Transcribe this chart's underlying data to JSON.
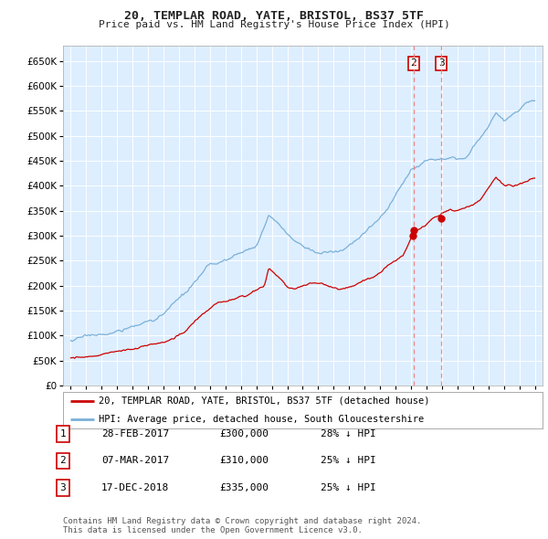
{
  "title": "20, TEMPLAR ROAD, YATE, BRISTOL, BS37 5TF",
  "subtitle": "Price paid vs. HM Land Registry's House Price Index (HPI)",
  "ylim": [
    0,
    680000
  ],
  "yticks": [
    0,
    50000,
    100000,
    150000,
    200000,
    250000,
    300000,
    350000,
    400000,
    450000,
    500000,
    550000,
    600000,
    650000
  ],
  "background_color": "#ffffff",
  "plot_bg_color": "#ddeeff",
  "grid_color": "#ffffff",
  "hpi_color": "#7ab0d8",
  "price_color": "#cc0000",
  "marker_color": "#cc0000",
  "vline_color": "#ee8888",
  "sale_dates": [
    2017.12,
    2017.17,
    2018.96
  ],
  "sale_prices": [
    300000,
    310000,
    335000
  ],
  "vline_dates": [
    2017.17,
    2018.96
  ],
  "vline_labels": [
    "2",
    "3"
  ],
  "legend_entries": [
    {
      "label": "20, TEMPLAR ROAD, YATE, BRISTOL, BS37 5TF (detached house)",
      "color": "#cc0000"
    },
    {
      "label": "HPI: Average price, detached house, South Gloucestershire",
      "color": "#7ab0d8"
    }
  ],
  "table_rows": [
    {
      "num": "1",
      "date": "28-FEB-2017",
      "price": "£300,000",
      "pct": "28% ↓ HPI"
    },
    {
      "num": "2",
      "date": "07-MAR-2017",
      "price": "£310,000",
      "pct": "25% ↓ HPI"
    },
    {
      "num": "3",
      "date": "17-DEC-2018",
      "price": "£335,000",
      "pct": "25% ↓ HPI"
    }
  ],
  "footer": "Contains HM Land Registry data © Crown copyright and database right 2024.\nThis data is licensed under the Open Government Licence v3.0."
}
